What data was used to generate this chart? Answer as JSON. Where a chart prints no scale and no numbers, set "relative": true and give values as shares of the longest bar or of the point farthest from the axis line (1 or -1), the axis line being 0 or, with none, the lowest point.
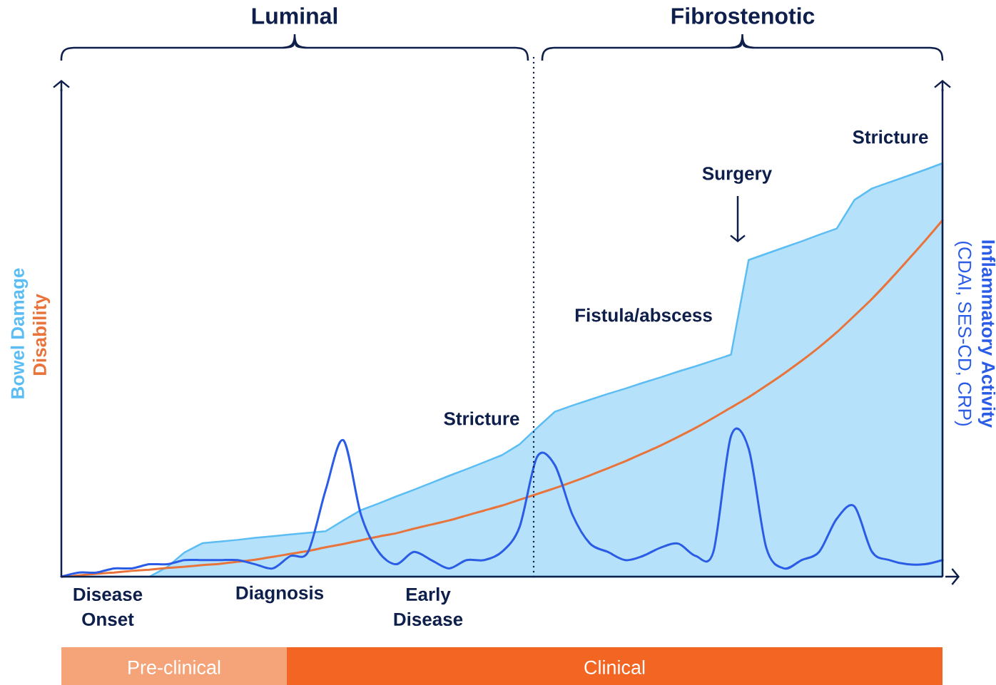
{
  "chart_data": {
    "type": "area",
    "relative": true,
    "categories": [
      null,
      null,
      null,
      null,
      null,
      null,
      null,
      null,
      null,
      null,
      null,
      null,
      null,
      null,
      null,
      null,
      null,
      null,
      null,
      null,
      null,
      null,
      null,
      null,
      null,
      null,
      null,
      null,
      null,
      null,
      null,
      null,
      null,
      null,
      null,
      null,
      null,
      null,
      null,
      null,
      null,
      null,
      null,
      null,
      null,
      null,
      null,
      null,
      null,
      null,
      null
    ],
    "series": [
      {
        "name": "Bowel Damage",
        "color": "#5bbdf3",
        "values": [
          0,
          0,
          0,
          0,
          0,
          0,
          0.023,
          0.059,
          0.081,
          0.085,
          0.089,
          0.094,
          0.098,
          0.102,
          0.106,
          0.11,
          0.136,
          0.161,
          0.177,
          0.194,
          0.21,
          0.227,
          0.244,
          0.26,
          0.277,
          0.294,
          0.32,
          0.36,
          0.399,
          0.414,
          0.428,
          0.442,
          0.455,
          0.469,
          0.482,
          0.496,
          0.509,
          0.523,
          0.537,
          0.766,
          0.781,
          0.796,
          0.811,
          0.827,
          0.842,
          0.911,
          0.939,
          0.954,
          0.969,
          0.984,
          1
        ]
      },
      {
        "name": "Disability",
        "type": "line",
        "color": "#e8743b",
        "values": [
          0,
          0.003,
          0.007,
          0.01,
          0.014,
          0.017,
          0.021,
          0.024,
          0.028,
          0.031,
          0.036,
          0.041,
          0.048,
          0.055,
          0.062,
          0.071,
          0.079,
          0.088,
          0.097,
          0.105,
          0.116,
          0.126,
          0.136,
          0.148,
          0.16,
          0.172,
          0.186,
          0.2,
          0.214,
          0.229,
          0.245,
          0.262,
          0.279,
          0.298,
          0.317,
          0.338,
          0.36,
          0.384,
          0.409,
          0.434,
          0.462,
          0.491,
          0.522,
          0.555,
          0.591,
          0.631,
          0.672,
          0.717,
          0.764,
          0.812,
          0.862
        ]
      },
      {
        "name": "Inflammatory Activity",
        "type": "line",
        "color": "#2b5ce6",
        "values": [
          0,
          0.01,
          0.01,
          0.02,
          0.02,
          0.03,
          0.03,
          0.04,
          0.04,
          0.04,
          0.04,
          0.03,
          0.02,
          0.05,
          0.06,
          0.21,
          0.33,
          0.15,
          0.06,
          0.03,
          0.06,
          0.04,
          0.02,
          0.04,
          0.04,
          0.06,
          0.12,
          0.29,
          0.27,
          0.15,
          0.08,
          0.06,
          0.04,
          0.05,
          0.07,
          0.08,
          0.05,
          0.06,
          0.34,
          0.31,
          0.07,
          0.02,
          0.04,
          0.06,
          0.14,
          0.17,
          0.06,
          0.04,
          0.03,
          0.03,
          0.04
        ]
      }
    ],
    "y2label": "(CDAI, SES-CD, CRP)",
    "annotations": [
      "Luminal",
      "Fibrostenotic",
      "Stricture",
      "Surgery",
      "Fistula/abscess",
      "Stricture",
      "Disease Onset",
      "Diagnosis",
      "Early Disease",
      "Pre-clinical",
      "Clinical"
    ]
  }
}
